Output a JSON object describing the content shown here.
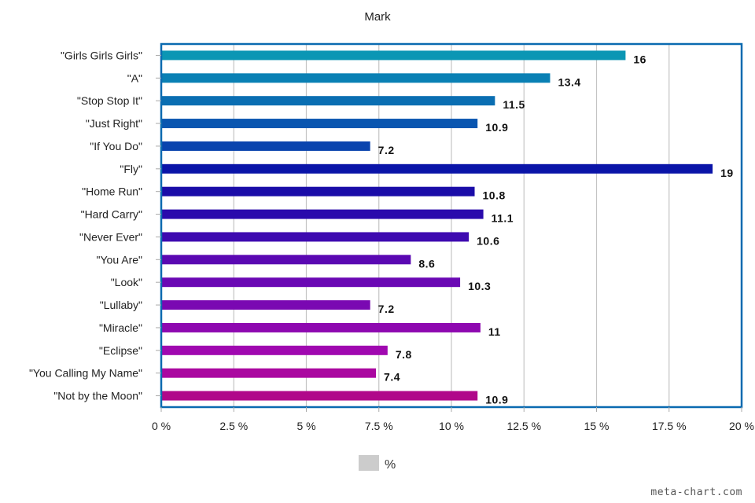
{
  "chart_data": {
    "type": "bar",
    "orientation": "horizontal",
    "title": "Mark",
    "categories": [
      "\"Girls Girls Girls\"",
      "\"A\"",
      "\"Stop Stop It\"",
      "\"Just Right\"",
      "\"If You Do\"",
      "\"Fly\"",
      "\"Home Run\"",
      "\"Hard Carry\"",
      "\"Never Ever\"",
      "\"You Are\"",
      "\"Look\"",
      "\"Lullaby\"",
      "\"Miracle\"",
      "\"Eclipse\"",
      "\"You Calling My Name\"",
      "\"Not by the Moon\""
    ],
    "values": [
      16,
      13.4,
      11.5,
      10.9,
      7.2,
      19,
      10.8,
      11.1,
      10.6,
      8.6,
      10.3,
      7.2,
      11,
      7.8,
      7.4,
      10.9
    ],
    "value_labels": [
      "16",
      "13.4",
      "11.5",
      "10.9",
      "7.2",
      "19",
      "10.8",
      "11.1",
      "10.6",
      "8.6",
      "10.3",
      "7.2",
      "11",
      "7.8",
      "7.4",
      "10.9"
    ],
    "colors": [
      "#0b96b4",
      "#0a80b4",
      "#0a6eb2",
      "#0a56b0",
      "#0a44ae",
      "#0a14a8",
      "#1a0ca8",
      "#2a0aac",
      "#3e0ab0",
      "#5a08b2",
      "#6a08b4",
      "#7a08b2",
      "#8e08b0",
      "#a008b0",
      "#aa08a0",
      "#b0088a"
    ],
    "xlim": [
      0,
      20
    ],
    "xticks": [
      0,
      2.5,
      5,
      7.5,
      10,
      12.5,
      15,
      17.5,
      20
    ],
    "xtick_labels": [
      "0 %",
      "2.5 %",
      "5 %",
      "7.5 %",
      "10 %",
      "12.5 %",
      "15 %",
      "17.5 %",
      "20 %"
    ],
    "grid": true,
    "legend": {
      "label": "%",
      "placement": "bottom-center",
      "swatch_color": "#cccccc"
    },
    "frame_color": "#0a6ab0"
  },
  "watermark": "meta-chart.com"
}
